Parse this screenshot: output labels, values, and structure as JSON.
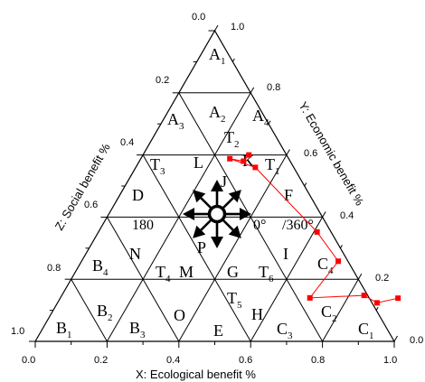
{
  "diagram": {
    "bottom_axis": {
      "title": "X: Ecological benefit %",
      "ticks": [
        "0.0",
        "0.2",
        "0.4",
        "0.6",
        "0.8",
        "1.0"
      ]
    },
    "right_axis": {
      "title": "Y: Economic benefit %",
      "ticks": [
        "0.0",
        "0.2",
        "0.4",
        "0.6",
        "0.8",
        "1.0"
      ]
    },
    "left_axis": {
      "title": "Z: Social benefit %",
      "ticks": [
        "0.0",
        "0.2",
        "0.4",
        "0.6",
        "0.8",
        "1.0"
      ]
    },
    "regions": {
      "A1": {
        "main": "A",
        "sub": "1"
      },
      "A2": {
        "main": "A",
        "sub": "2"
      },
      "A3": {
        "main": "A",
        "sub": "3"
      },
      "A4": {
        "main": "A",
        "sub": "4"
      },
      "T2": {
        "main": "T",
        "sub": "2"
      },
      "T3": {
        "main": "T",
        "sub": "3"
      },
      "T1": {
        "main": "T",
        "sub": "1"
      },
      "L": {
        "main": "L",
        "sub": ""
      },
      "K": {
        "main": "K",
        "sub": ""
      },
      "J": {
        "main": "J",
        "sub": ""
      },
      "D": {
        "main": "D",
        "sub": ""
      },
      "F": {
        "main": "F",
        "sub": ""
      },
      "N": {
        "main": "N",
        "sub": ""
      },
      "P": {
        "main": "P",
        "sub": ""
      },
      "I": {
        "main": "I",
        "sub": ""
      },
      "B4": {
        "main": "B",
        "sub": "4"
      },
      "T4": {
        "main": "T",
        "sub": "4"
      },
      "M": {
        "main": "M",
        "sub": ""
      },
      "G": {
        "main": "G",
        "sub": ""
      },
      "T6": {
        "main": "T",
        "sub": "6"
      },
      "C4": {
        "main": "C",
        "sub": "4"
      },
      "T5": {
        "main": "T",
        "sub": "5"
      },
      "B2": {
        "main": "B",
        "sub": "2"
      },
      "O": {
        "main": "O",
        "sub": ""
      },
      "H": {
        "main": "H",
        "sub": ""
      },
      "C2": {
        "main": "C",
        "sub": "2"
      },
      "B1": {
        "main": "B",
        "sub": "1"
      },
      "B3": {
        "main": "B",
        "sub": "3"
      },
      "E": {
        "main": "E",
        "sub": ""
      },
      "C3": {
        "main": "C",
        "sub": "3"
      },
      "C1": {
        "main": "C",
        "sub": "1"
      }
    },
    "angle_labels": {
      "left": "180",
      "right_start": "0°",
      "right_end": "/360°"
    },
    "compass": {
      "directions_deg": [
        0,
        45,
        90,
        135,
        180,
        225,
        270,
        315
      ]
    },
    "trajectory": {
      "color": "#ff0000",
      "points": [
        {
          "x": 0.295,
          "z": 0.6
        },
        {
          "x": 0.29,
          "z": 0.58
        },
        {
          "x": 0.248,
          "z": 0.588
        },
        {
          "x": 0.333,
          "z": 0.56
        },
        {
          "x": 0.609,
          "z": 0.352
        },
        {
          "x": 0.715,
          "z": 0.258
        },
        {
          "x": 0.695,
          "z": 0.14
        },
        {
          "x": 0.842,
          "z": 0.148
        },
        {
          "x": 0.89,
          "z": 0.124
        },
        {
          "x": 0.941,
          "z": 0.139
        }
      ]
    },
    "grid_color": "#000000"
  }
}
